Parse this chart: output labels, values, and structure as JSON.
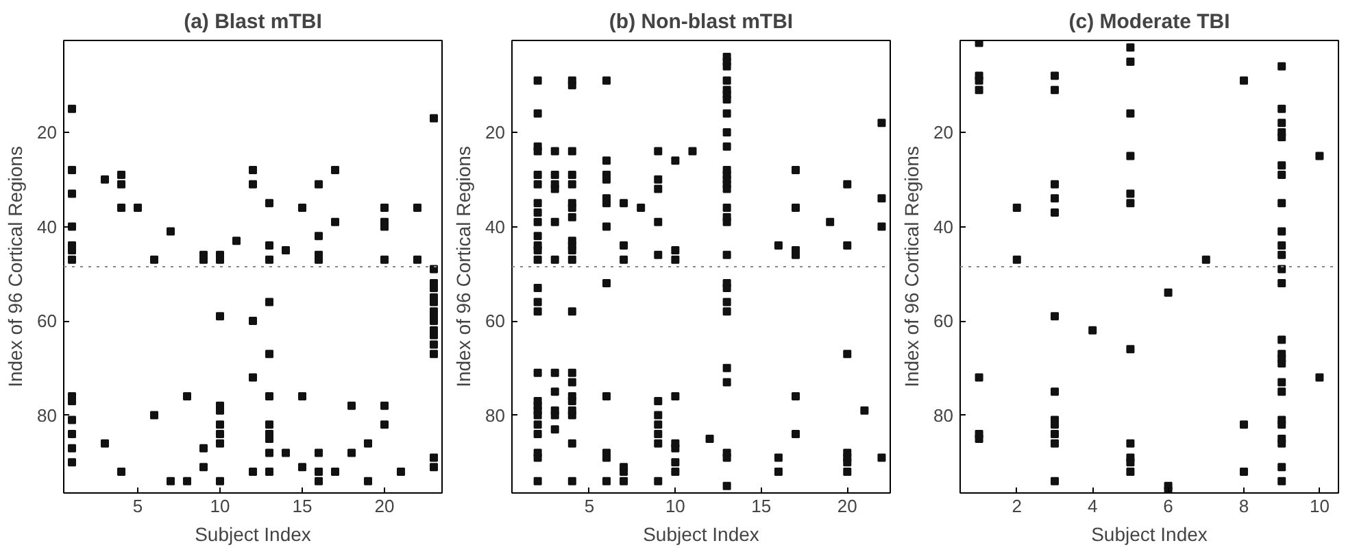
{
  "chart_data": [
    {
      "type": "scatter",
      "title": "(a) Blast mTBI",
      "xlabel": "Subject Index",
      "ylabel": "Index of 96 Cortical Regions",
      "marker": "square",
      "grid": false,
      "xlim": [
        0.5,
        23.5
      ],
      "xticks": [
        5,
        10,
        15,
        20
      ],
      "ylim": [
        96.5,
        0.5
      ],
      "yticks": [
        20,
        40,
        60,
        80
      ],
      "ref_lines": [
        {
          "axis": "y",
          "value": 48.5,
          "color": "#888888",
          "line_style": "dotted"
        }
      ],
      "series": [
        {
          "color": "#111111",
          "x": [
            1,
            1,
            1,
            1,
            1,
            1,
            1,
            1,
            1,
            1,
            1,
            1,
            1,
            3,
            3,
            4,
            4,
            4,
            4,
            5,
            6,
            6,
            7,
            7,
            8,
            8,
            9,
            9,
            9,
            9,
            10,
            10,
            10,
            10,
            10,
            10,
            10,
            10,
            10,
            11,
            12,
            12,
            12,
            12,
            12,
            13,
            13,
            13,
            13,
            13,
            13,
            13,
            13,
            13,
            13,
            13,
            14,
            14,
            15,
            15,
            15,
            16,
            16,
            16,
            16,
            16,
            16,
            16,
            17,
            17,
            17,
            18,
            18,
            19,
            19,
            20,
            20,
            20,
            20,
            20,
            20,
            21,
            22,
            22,
            23,
            23,
            23,
            23,
            23,
            23,
            23,
            23,
            23,
            23,
            23,
            23,
            23,
            23,
            23
          ],
          "values": [
            15,
            28,
            33,
            40,
            44,
            45,
            47,
            76,
            77,
            81,
            84,
            87,
            90,
            30,
            86,
            29,
            31,
            36,
            92,
            36,
            47,
            80,
            41,
            94,
            94,
            76,
            46,
            47,
            87,
            91,
            46,
            47,
            59,
            78,
            79,
            82,
            84,
            86,
            94,
            43,
            28,
            31,
            60,
            72,
            92,
            35,
            44,
            47,
            56,
            67,
            76,
            82,
            84,
            85,
            88,
            92,
            45,
            88,
            36,
            76,
            91,
            31,
            42,
            46,
            47,
            88,
            94,
            92,
            28,
            39,
            92,
            78,
            88,
            86,
            94,
            36,
            39,
            40,
            47,
            78,
            82,
            92,
            36,
            47,
            17,
            49,
            52,
            53,
            55,
            56,
            58,
            59,
            60,
            62,
            63,
            65,
            67,
            89,
            91
          ]
        }
      ]
    },
    {
      "type": "scatter",
      "title": "(b) Non-blast mTBI",
      "xlabel": "Subject Index",
      "ylabel": "Index of 96 Cortical Regions",
      "marker": "square",
      "grid": false,
      "xlim": [
        0.5,
        22.5
      ],
      "xticks": [
        5,
        10,
        15,
        20
      ],
      "ylim": [
        96.5,
        0.5
      ],
      "yticks": [
        20,
        40,
        60,
        80
      ],
      "ref_lines": [
        {
          "axis": "y",
          "value": 48.5,
          "color": "#888888",
          "line_style": "dotted"
        }
      ],
      "series": [
        {
          "color": "#111111",
          "x": [
            2,
            2,
            2,
            2,
            2,
            2,
            2,
            2,
            2,
            2,
            2,
            2,
            2,
            2,
            2,
            2,
            2,
            2,
            2,
            2,
            2,
            2,
            2,
            2,
            2,
            2,
            3,
            3,
            3,
            3,
            3,
            3,
            3,
            3,
            3,
            3,
            3,
            4,
            4,
            4,
            4,
            4,
            4,
            4,
            4,
            4,
            4,
            4,
            4,
            4,
            4,
            4,
            4,
            4,
            4,
            4,
            4,
            4,
            6,
            6,
            6,
            6,
            6,
            6,
            6,
            6,
            6,
            6,
            6,
            6,
            7,
            7,
            7,
            7,
            7,
            7,
            8,
            9,
            9,
            9,
            9,
            9,
            9,
            9,
            9,
            9,
            9,
            9,
            10,
            10,
            10,
            10,
            10,
            10,
            10,
            10,
            11,
            12,
            13,
            13,
            13,
            13,
            13,
            13,
            13,
            13,
            13,
            13,
            13,
            13,
            13,
            13,
            13,
            13,
            13,
            13,
            13,
            13,
            13,
            13,
            13,
            13,
            13,
            13,
            13,
            13,
            16,
            16,
            16,
            17,
            17,
            17,
            17,
            17,
            17,
            19,
            20,
            20,
            20,
            20,
            20,
            20,
            20,
            21,
            22,
            22,
            22,
            22
          ],
          "values": [
            9,
            16,
            23,
            24,
            29,
            31,
            35,
            37,
            39,
            42,
            44,
            45,
            47,
            53,
            56,
            58,
            71,
            77,
            78,
            79,
            80,
            82,
            84,
            88,
            89,
            94,
            24,
            29,
            31,
            32,
            39,
            47,
            71,
            75,
            79,
            80,
            83,
            9,
            10,
            24,
            29,
            31,
            35,
            36,
            38,
            43,
            44,
            45,
            47,
            58,
            71,
            73,
            76,
            77,
            79,
            80,
            86,
            94,
            9,
            26,
            29,
            30,
            34,
            35,
            40,
            52,
            76,
            88,
            89,
            94,
            35,
            44,
            47,
            91,
            92,
            94,
            36,
            24,
            30,
            32,
            39,
            46,
            77,
            80,
            82,
            84,
            86,
            94,
            26,
            45,
            47,
            76,
            86,
            87,
            90,
            92,
            24,
            85,
            4,
            5,
            6,
            9,
            11,
            12,
            13,
            16,
            20,
            23,
            28,
            29,
            30,
            31,
            32,
            36,
            38,
            39,
            46,
            52,
            53,
            56,
            58,
            70,
            73,
            88,
            89,
            95,
            44,
            89,
            92,
            28,
            36,
            45,
            46,
            76,
            84,
            39,
            31,
            44,
            67,
            88,
            89,
            90,
            92,
            79,
            18,
            34,
            40,
            89
          ]
        }
      ]
    },
    {
      "type": "scatter",
      "title": "(c) Moderate TBI",
      "xlabel": "Subject Index",
      "ylabel": "Index of 96 Cortical Regions",
      "marker": "square",
      "grid": false,
      "xlim": [
        0.5,
        10.5
      ],
      "xticks": [
        2,
        4,
        6,
        8,
        10
      ],
      "ylim": [
        96.5,
        0.5
      ],
      "yticks": [
        20,
        40,
        60,
        80
      ],
      "ref_lines": [
        {
          "axis": "y",
          "value": 48.5,
          "color": "#888888",
          "line_style": "dotted"
        }
      ],
      "series": [
        {
          "color": "#111111",
          "x": [
            1,
            1,
            1,
            1,
            1,
            1,
            1,
            2,
            2,
            3,
            3,
            3,
            3,
            3,
            3,
            3,
            3,
            3,
            3,
            3,
            3,
            4,
            5,
            5,
            5,
            5,
            5,
            5,
            5,
            5,
            5,
            5,
            5,
            6,
            6,
            6,
            7,
            8,
            8,
            8,
            9,
            9,
            9,
            9,
            9,
            9,
            9,
            9,
            9,
            9,
            9,
            9,
            9,
            9,
            9,
            9,
            9,
            9,
            9,
            9,
            9,
            9,
            9,
            9,
            9,
            10,
            10
          ],
          "values": [
            1,
            8,
            9,
            11,
            72,
            84,
            85,
            36,
            47,
            8,
            11,
            31,
            34,
            37,
            59,
            75,
            81,
            82,
            84,
            86,
            94,
            62,
            2,
            5,
            16,
            25,
            33,
            35,
            66,
            86,
            89,
            90,
            92,
            54,
            95,
            96,
            47,
            9,
            82,
            92,
            6,
            15,
            18,
            20,
            21,
            27,
            29,
            35,
            41,
            44,
            46,
            49,
            52,
            64,
            67,
            68,
            69,
            73,
            75,
            81,
            82,
            85,
            86,
            91,
            94,
            25,
            72
          ]
        }
      ]
    }
  ]
}
